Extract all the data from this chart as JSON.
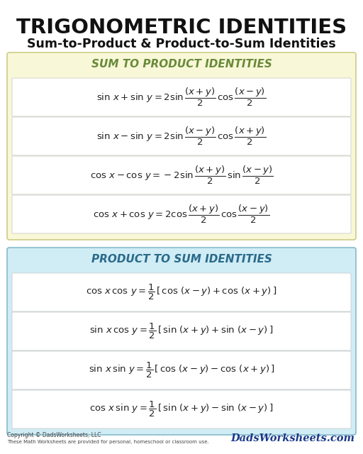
{
  "title": "TRIGONOMETRIC IDENTITIES",
  "subtitle": "Sum-to-Product & Product-to-Sum Identities",
  "bg_color": "#ffffff",
  "section1_bg": "#f8f8d8",
  "section2_bg": "#d0ecf5",
  "section1_title": "SUM TO PRODUCT IDENTITIES",
  "section2_title": "PRODUCT TO SUM IDENTITIES",
  "section1_title_color": "#6a8a3a",
  "section2_title_color": "#2a6a8a",
  "sum_to_product": [
    "$\\sin\\,x + \\sin\\,y = 2\\sin\\dfrac{(x + y)}{2}\\,\\cos\\dfrac{(x - y)}{2}$",
    "$\\sin\\,x - \\sin\\,y = 2\\sin\\dfrac{(x - y)}{2}\\,\\cos\\dfrac{(x + y)}{2}$",
    "$\\cos\\,x - \\cos\\,y = -2\\sin\\dfrac{(x + y)}{2}\\,\\sin\\dfrac{(x - y)}{2}$",
    "$\\cos\\,x + \\cos\\,y = 2\\cos\\dfrac{(x + y)}{2}\\,\\cos\\dfrac{(x - y)}{2}$"
  ],
  "product_to_sum": [
    "$\\cos\\,x\\,\\cos\\,y = \\dfrac{1}{2}\\,[\\,\\cos\\,(x - y) + \\cos\\,(x + y)\\,]$",
    "$\\sin\\,x\\,\\cos\\,y = \\dfrac{1}{2}\\,[\\,\\sin\\,(x + y) + \\sin\\,(x - y)\\,]$",
    "$\\sin\\,x\\,\\sin\\,y = \\dfrac{1}{2}\\,[\\,\\cos\\,(x - y) - \\cos\\,(x + y)\\,]$",
    "$\\cos\\,x\\,\\sin\\,y = \\dfrac{1}{2}\\,[\\,\\sin\\,(x + y) - \\sin\\,(x - y)\\,]$"
  ],
  "copyright_line1": "Copyright © DadsWorksheets, LLC",
  "copyright_line2": "These Math Worksheets are provided for personal, homeschool or classroom use.",
  "watermark": "DadsWorksheets.com",
  "section1_edge": "#cccc88",
  "section2_edge": "#88bbcc",
  "row_edge": "#cccccc",
  "row_bg": "#ffffff"
}
